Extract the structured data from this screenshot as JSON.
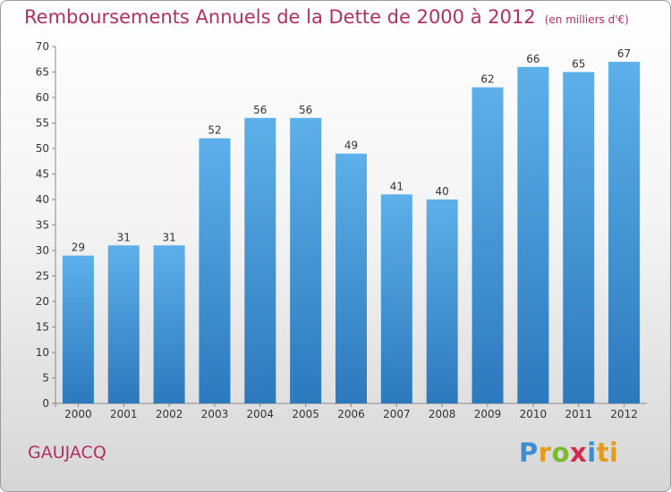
{
  "title": "Remboursements Annuels de la Dette de 2000 à 2012",
  "unit": "(en milliers d'€)",
  "commune": "GAUJACQ",
  "logo": [
    "P",
    "r",
    "o",
    "x",
    "i",
    "ti"
  ],
  "colors": {
    "bar_light": "#5db0ea",
    "bar_dark": "#2c79bd",
    "title": "#b03060",
    "grid": "#b5b5b5"
  },
  "chart_data": {
    "type": "bar",
    "title": "Remboursements Annuels de la Dette de 2000 à 2012",
    "categories": [
      "2000",
      "2001",
      "2002",
      "2003",
      "2004",
      "2005",
      "2006",
      "2007",
      "2008",
      "2009",
      "2010",
      "2011",
      "2012"
    ],
    "values": [
      29,
      31,
      31,
      52,
      56,
      56,
      49,
      41,
      40,
      62,
      66,
      65,
      67
    ],
    "xlabel": "",
    "ylabel": "",
    "ylim": [
      0,
      70
    ],
    "yticks": [
      0,
      5,
      10,
      15,
      20,
      25,
      30,
      35,
      40,
      45,
      50,
      55,
      60,
      65,
      70
    ],
    "grid": false,
    "data_labels": true
  }
}
